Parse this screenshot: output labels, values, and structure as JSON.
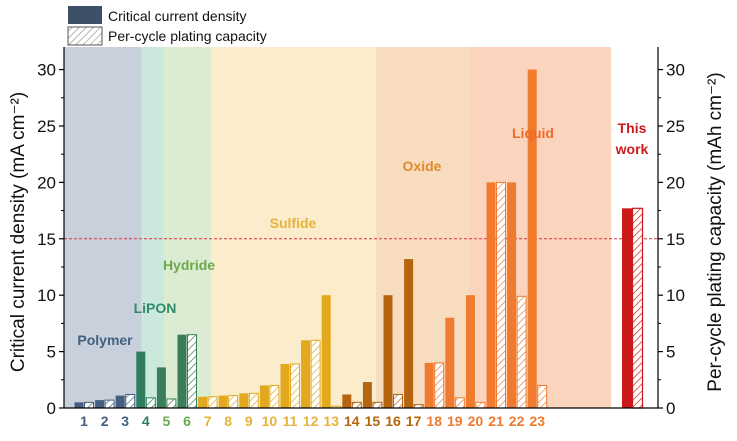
{
  "chart_data": {
    "type": "bar",
    "legend": [
      {
        "label": "Critical current density",
        "style": "solid"
      },
      {
        "label": "Per-cycle plating capacity",
        "style": "hatched"
      }
    ],
    "ylabel": "Critical current density (mA cm⁻²)",
    "y2label": "Per-cycle plating capacity (mAh cm⁻²)",
    "ylim": [
      0,
      32
    ],
    "y2lim": [
      0,
      32
    ],
    "yticks": [
      0,
      5,
      10,
      15,
      20,
      25,
      30
    ],
    "reference_line": 15,
    "reference_color": "#e0303a",
    "regions": [
      {
        "name": "Polymer",
        "label": "Polymer",
        "start": 1,
        "end": 3,
        "bg": "#c8d0dc",
        "text_color": "#44607e"
      },
      {
        "name": "LiPON",
        "label": "LiPON",
        "start": 4,
        "end": 4,
        "bg": "#cce8dc",
        "text_color": "#2e8a6a"
      },
      {
        "name": "Hydride",
        "label": "Hydride",
        "start": 5,
        "end": 6,
        "bg": "#dcecd2",
        "text_color": "#6aa84f"
      },
      {
        "name": "Sulfide",
        "label": "Sulfide",
        "start": 7,
        "end": 13,
        "bg": "#fbeccb",
        "text_color": "#e6b33a"
      },
      {
        "name": "Oxide",
        "label": "Oxide",
        "start": 14,
        "end": 17,
        "bg": "#f7dcc0",
        "text_color": "#e08a2a"
      },
      {
        "name": "Liquid",
        "label": "Liquid",
        "start": 18,
        "end": 23,
        "bg": "#fbd4bd",
        "text_color": "#f06a2a"
      }
    ],
    "this_work_label": [
      "This",
      "work"
    ],
    "this_work_color": "#cc1a1a",
    "categories": [
      "1",
      "2",
      "3",
      "4",
      "5",
      "6",
      "7",
      "8",
      "9",
      "10",
      "11",
      "12",
      "13",
      "14",
      "15",
      "16",
      "17",
      "18",
      "19",
      "20",
      "21",
      "22",
      "23"
    ],
    "series": [
      {
        "name": "Critical current density",
        "values": [
          0.5,
          0.7,
          1.1,
          5.0,
          3.6,
          6.5,
          1.0,
          1.1,
          1.3,
          2.0,
          3.9,
          6.0,
          10.0,
          1.2,
          2.3,
          10.0,
          13.2,
          4.0,
          8.0,
          10.0,
          20.0,
          20.0,
          30.0
        ]
      },
      {
        "name": "Per-cycle plating capacity",
        "values": [
          0.5,
          0.7,
          1.2,
          0.9,
          0.8,
          6.5,
          1.0,
          1.1,
          1.3,
          2.0,
          3.9,
          6.0,
          0.15,
          0.5,
          0.5,
          1.2,
          0.3,
          4.0,
          0.9,
          0.5,
          20.0,
          9.9,
          2.0
        ]
      }
    ],
    "this_work": {
      "ccd": 17.7,
      "capacity": 17.7
    },
    "bar_colors": [
      "#44607e",
      "#44607e",
      "#44607e",
      "#2e7d5e",
      "#3a7d5a",
      "#3a7d5a",
      "#e2a81e",
      "#e2a81e",
      "#e2a81e",
      "#e2a81e",
      "#e2a81e",
      "#e2a81e",
      "#e2a81e",
      "#b5650f",
      "#b5650f",
      "#b5650f",
      "#b5650f",
      "#f07a2e",
      "#f07a2e",
      "#f07a2e",
      "#f07a2e",
      "#f07a2e",
      "#f07a2e"
    ],
    "label_colors": [
      "#44607e",
      "#44607e",
      "#44607e",
      "#2e7d5e",
      "#6aa84f",
      "#6aa84f",
      "#e6b33a",
      "#e6b33a",
      "#e6b33a",
      "#e6b33a",
      "#e6b33a",
      "#e6b33a",
      "#e6b33a",
      "#b5650f",
      "#b5650f",
      "#b5650f",
      "#b5650f",
      "#f07a2e",
      "#f07a2e",
      "#f07a2e",
      "#f07a2e",
      "#f07a2e",
      "#f07a2e"
    ]
  }
}
